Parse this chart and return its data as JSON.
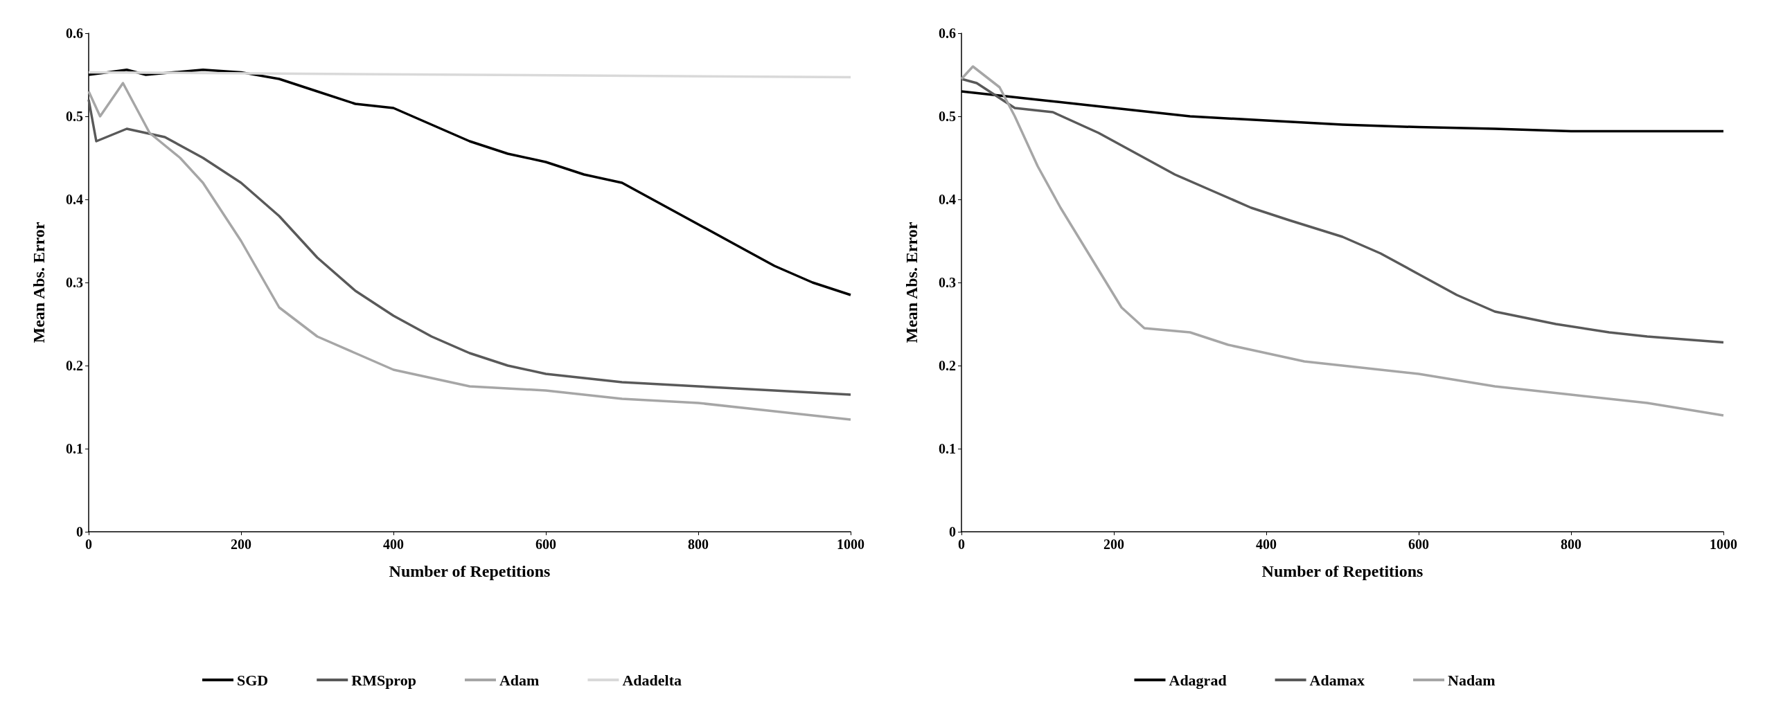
{
  "chart_data": [
    {
      "type": "line",
      "xlabel": "Number of Repetitions",
      "ylabel": "Mean Abs. Error",
      "xlim": [
        0,
        1000
      ],
      "ylim": [
        0,
        0.6
      ],
      "xticks": [
        0,
        200,
        400,
        600,
        800,
        1000
      ],
      "yticks": [
        0,
        0.1,
        0.2,
        0.3,
        0.4,
        0.5,
        0.6
      ],
      "grid": false,
      "legend": "bottom",
      "marker": "none",
      "line_style": "solid",
      "series": [
        {
          "name": "SGD",
          "color": "#000000",
          "x": [
            0,
            25,
            50,
            75,
            100,
            150,
            200,
            250,
            300,
            350,
            400,
            450,
            500,
            550,
            600,
            650,
            700,
            750,
            800,
            850,
            900,
            950,
            1000
          ],
          "values": [
            0.55,
            0.553,
            0.556,
            0.55,
            0.552,
            0.556,
            0.553,
            0.545,
            0.53,
            0.515,
            0.51,
            0.49,
            0.47,
            0.455,
            0.445,
            0.43,
            0.42,
            0.395,
            0.37,
            0.345,
            0.32,
            0.3,
            0.285
          ]
        },
        {
          "name": "RMSprop",
          "color": "#595959",
          "x": [
            0,
            10,
            50,
            100,
            150,
            200,
            250,
            300,
            350,
            400,
            450,
            500,
            550,
            600,
            650,
            700,
            800,
            900,
            1000
          ],
          "values": [
            0.52,
            0.47,
            0.485,
            0.475,
            0.45,
            0.42,
            0.38,
            0.33,
            0.29,
            0.26,
            0.235,
            0.215,
            0.2,
            0.19,
            0.185,
            0.18,
            0.175,
            0.17,
            0.165
          ]
        },
        {
          "name": "Adam",
          "color": "#a6a6a6",
          "x": [
            0,
            15,
            45,
            80,
            120,
            150,
            200,
            250,
            300,
            350,
            400,
            450,
            500,
            600,
            700,
            800,
            900,
            1000
          ],
          "values": [
            0.53,
            0.5,
            0.54,
            0.48,
            0.45,
            0.42,
            0.35,
            0.27,
            0.235,
            0.215,
            0.195,
            0.185,
            0.175,
            0.17,
            0.16,
            0.155,
            0.145,
            0.135
          ]
        },
        {
          "name": "Adadelta",
          "color": "#d9d9d9",
          "x": [
            0,
            500,
            1000
          ],
          "values": [
            0.553,
            0.55,
            0.547
          ]
        }
      ]
    },
    {
      "type": "line",
      "xlabel": "Number of Repetitions",
      "ylabel": "Mean Abs. Error",
      "xlim": [
        0,
        1000
      ],
      "ylim": [
        0,
        0.6
      ],
      "xticks": [
        0,
        200,
        400,
        600,
        800,
        1000
      ],
      "yticks": [
        0,
        0.1,
        0.2,
        0.3,
        0.4,
        0.5,
        0.6
      ],
      "grid": false,
      "legend": "bottom",
      "marker": "none",
      "line_style": "solid",
      "series": [
        {
          "name": "Adagrad",
          "color": "#000000",
          "x": [
            0,
            100,
            200,
            300,
            400,
            500,
            600,
            700,
            800,
            1000
          ],
          "values": [
            0.53,
            0.52,
            0.51,
            0.5,
            0.495,
            0.49,
            0.487,
            0.485,
            0.482,
            0.482
          ]
        },
        {
          "name": "Adamax",
          "color": "#595959",
          "x": [
            0,
            20,
            70,
            120,
            180,
            220,
            280,
            330,
            380,
            430,
            500,
            550,
            600,
            650,
            700,
            780,
            850,
            900,
            1000
          ],
          "values": [
            0.545,
            0.54,
            0.51,
            0.505,
            0.48,
            0.46,
            0.43,
            0.41,
            0.39,
            0.375,
            0.355,
            0.335,
            0.31,
            0.285,
            0.265,
            0.25,
            0.24,
            0.235,
            0.228
          ]
        },
        {
          "name": "Nadam",
          "color": "#a6a6a6",
          "x": [
            0,
            15,
            50,
            70,
            100,
            130,
            170,
            210,
            240,
            300,
            350,
            400,
            450,
            500,
            600,
            700,
            800,
            900,
            1000
          ],
          "values": [
            0.545,
            0.56,
            0.535,
            0.5,
            0.44,
            0.39,
            0.33,
            0.27,
            0.245,
            0.24,
            0.225,
            0.215,
            0.205,
            0.2,
            0.19,
            0.175,
            0.165,
            0.155,
            0.14
          ]
        }
      ]
    }
  ]
}
